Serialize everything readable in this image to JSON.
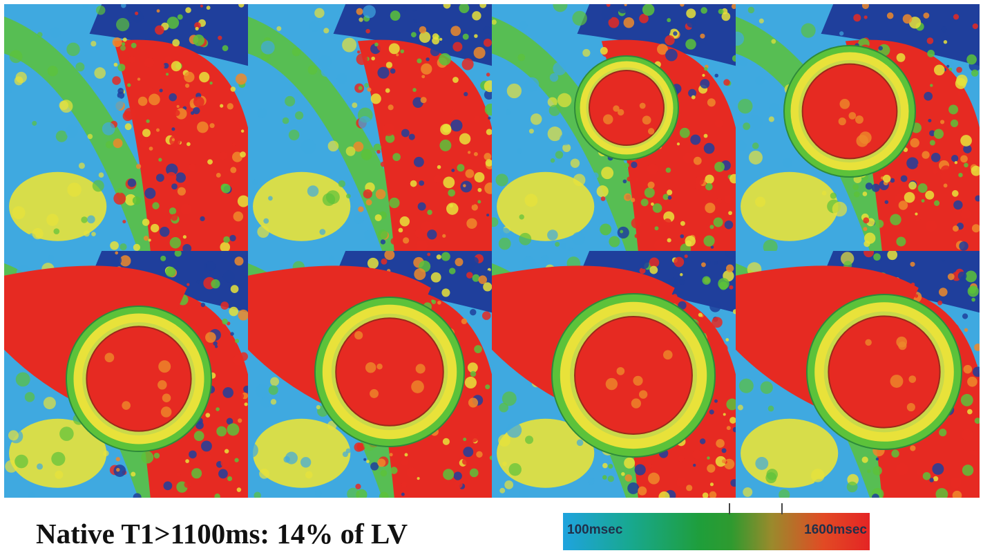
{
  "figure": {
    "caption": "Native T1>1100ms: 14% of LV",
    "panels": [
      "slice-1",
      "slice-2",
      "slice-3",
      "slice-4",
      "slice-5",
      "slice-6",
      "slice-7",
      "slice-8"
    ],
    "colors": {
      "background_blue": "#1f3f9c",
      "light_blue": "#3fa9e0",
      "green": "#5cc23a",
      "yellow": "#e8e23a",
      "orange": "#ee8a2a",
      "red": "#e62a22"
    }
  },
  "colorbar": {
    "min_label": "100msec",
    "max_label": "1600msec"
  }
}
